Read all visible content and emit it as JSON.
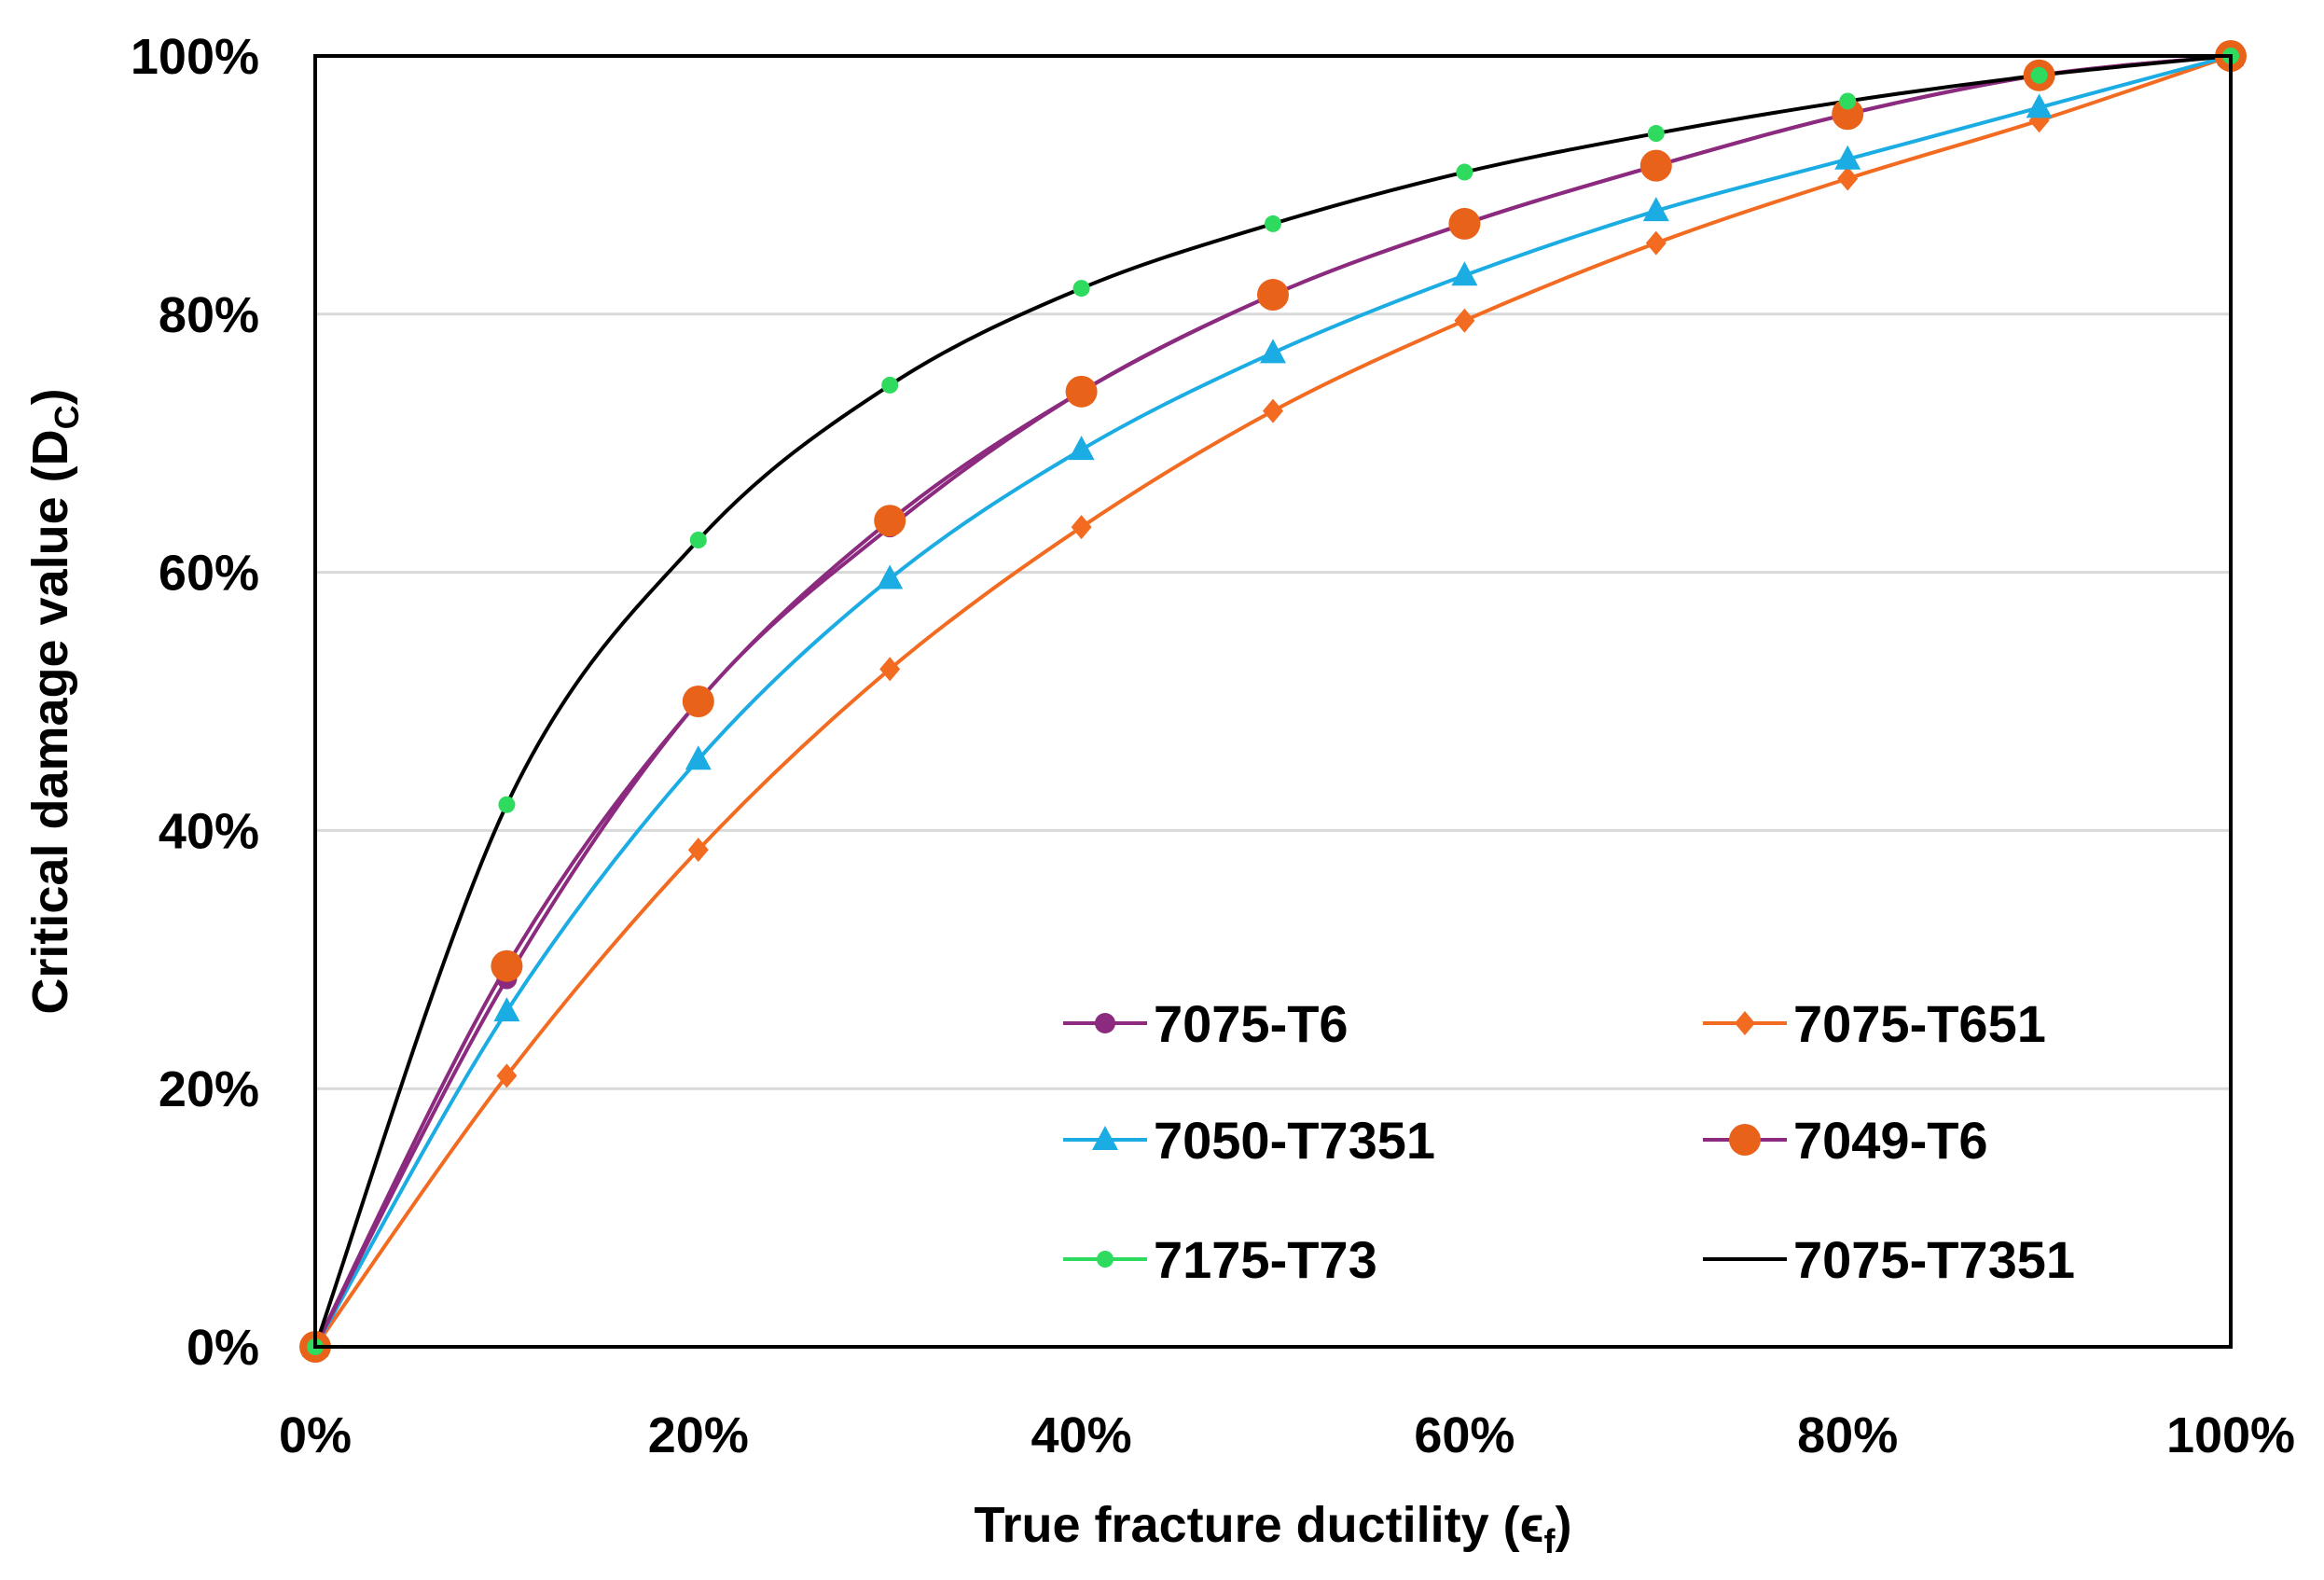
{
  "chart_data": {
    "type": "line",
    "title": "",
    "xlabel": "True fracture ductility (ϵ",
    "xlabel_sub": "f",
    "xlabel_close": ")",
    "ylabel": "Critical damage value (D",
    "ylabel_sub": "C",
    "ylabel_close": ")",
    "x": [
      0,
      10,
      20,
      30,
      40,
      50,
      60,
      70,
      80,
      90,
      100
    ],
    "xlim": [
      0,
      100
    ],
    "ylim": [
      0,
      100
    ],
    "x_ticks": [
      "0%",
      "20%",
      "40%",
      "60%",
      "80%",
      "100%"
    ],
    "y_ticks": [
      "0%",
      "20%",
      "40%",
      "60%",
      "80%",
      "100%"
    ],
    "grid": "horizontal",
    "legend_position": "lower-right",
    "series": [
      {
        "name": "7075-T6",
        "color": "#8B2A7E",
        "marker": "circle-small",
        "values": [
          0,
          28.5,
          50,
          63.5,
          74,
          81.5,
          87,
          91.5,
          95.5,
          98.5,
          100
        ]
      },
      {
        "name": "7075-T651",
        "color": "#F26B21",
        "marker": "diamond",
        "values": [
          0,
          21,
          38.5,
          52.5,
          63.5,
          72.5,
          79.5,
          85.5,
          90.5,
          95,
          100
        ]
      },
      {
        "name": "7050-T7351",
        "color": "#1AACE3",
        "marker": "triangle",
        "values": [
          0,
          26,
          45.5,
          59.5,
          69.5,
          77,
          83,
          88,
          92,
          96,
          100
        ]
      },
      {
        "name": "7049-T6",
        "color": "#E8621A",
        "marker": "circle-large",
        "line_color": "#8B2A7E",
        "values": [
          0,
          29.5,
          50,
          64,
          74,
          81.5,
          87,
          91.5,
          95.5,
          98.5,
          100
        ]
      },
      {
        "name": "7175-T73",
        "color": "#2EDB5E",
        "marker": "circle-tiny",
        "values": [
          0,
          42,
          62.5,
          74.5,
          82,
          87,
          91,
          94,
          96.5,
          98.5,
          100
        ]
      },
      {
        "name": "7075-T7351",
        "color": "#000000",
        "marker": "none",
        "values": [
          0,
          42,
          62.5,
          74.5,
          82,
          87,
          91,
          94,
          96.5,
          98.5,
          100
        ]
      }
    ]
  }
}
